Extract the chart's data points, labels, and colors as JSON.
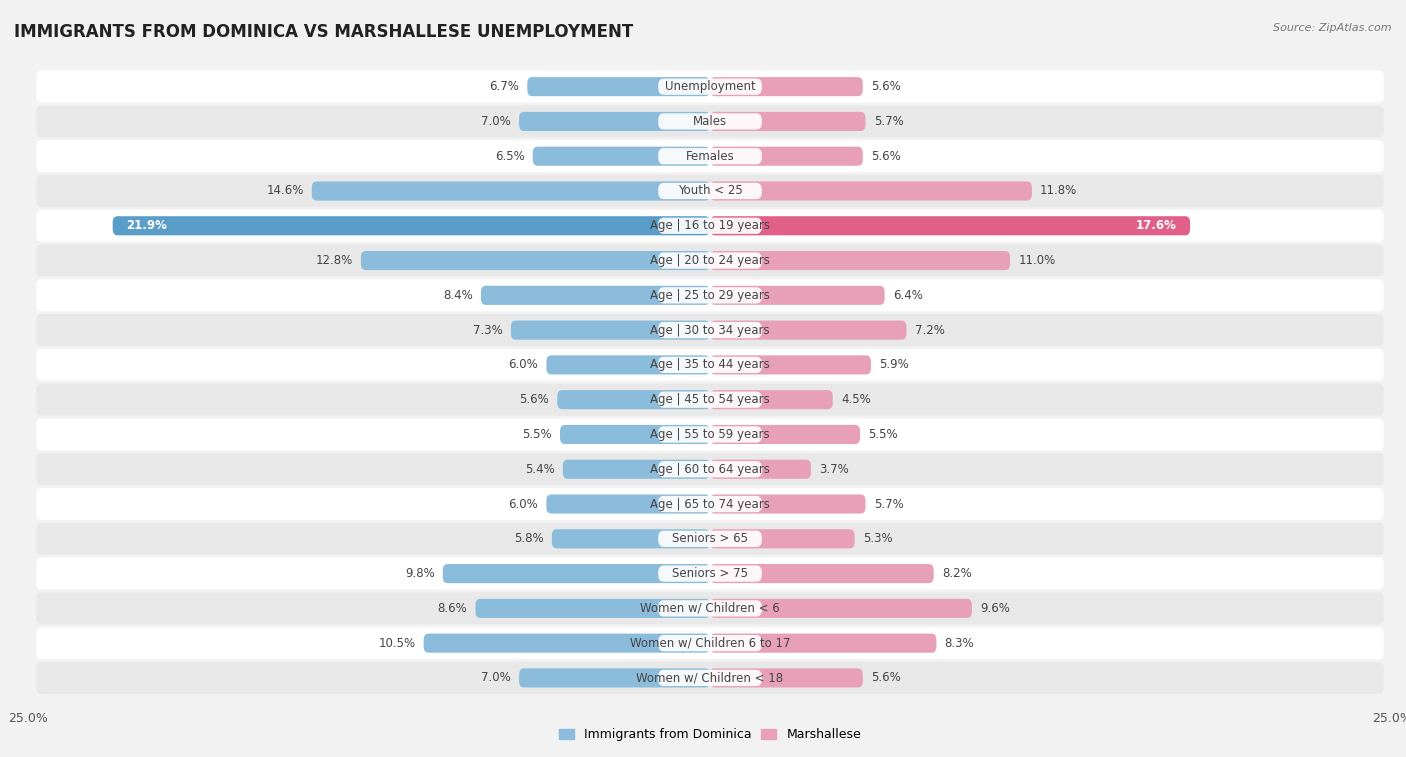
{
  "title": "IMMIGRANTS FROM DOMINICA VS MARSHALLESE UNEMPLOYMENT",
  "source": "Source: ZipAtlas.com",
  "categories": [
    "Unemployment",
    "Males",
    "Females",
    "Youth < 25",
    "Age | 16 to 19 years",
    "Age | 20 to 24 years",
    "Age | 25 to 29 years",
    "Age | 30 to 34 years",
    "Age | 35 to 44 years",
    "Age | 45 to 54 years",
    "Age | 55 to 59 years",
    "Age | 60 to 64 years",
    "Age | 65 to 74 years",
    "Seniors > 65",
    "Seniors > 75",
    "Women w/ Children < 6",
    "Women w/ Children 6 to 17",
    "Women w/ Children < 18"
  ],
  "left_values": [
    6.7,
    7.0,
    6.5,
    14.6,
    21.9,
    12.8,
    8.4,
    7.3,
    6.0,
    5.6,
    5.5,
    5.4,
    6.0,
    5.8,
    9.8,
    8.6,
    10.5,
    7.0
  ],
  "right_values": [
    5.6,
    5.7,
    5.6,
    11.8,
    17.6,
    11.0,
    6.4,
    7.2,
    5.9,
    4.5,
    5.5,
    3.7,
    5.7,
    5.3,
    8.2,
    9.6,
    8.3,
    5.6
  ],
  "left_color": "#8bbcdb",
  "right_color": "#e8a0b8",
  "highlight_left_color": "#5b9dc9",
  "highlight_right_color": "#e0608a",
  "max_val": 25.0,
  "bg_color": "#f2f2f2",
  "row_bg_even": "#ffffff",
  "row_bg_odd": "#e8e8e8",
  "legend_left": "Immigrants from Dominica",
  "legend_right": "Marshallese",
  "title_fontsize": 12,
  "label_fontsize": 8.5,
  "value_fontsize": 8.5
}
